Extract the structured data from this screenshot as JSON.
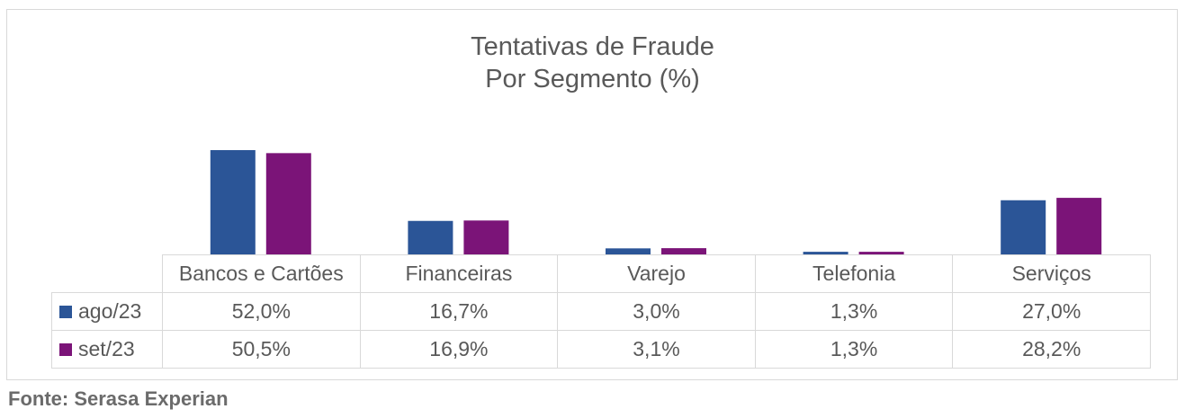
{
  "chart_data": {
    "type": "bar",
    "title_lines": [
      "Tentativas de Fraude",
      "Por Segmento (%)"
    ],
    "categories": [
      "Bancos e Cartões",
      "Financeiras",
      "Varejo",
      "Telefonia",
      "Serviços"
    ],
    "series": [
      {
        "name": "ago/23",
        "color": "#2b5597",
        "values": [
          52.0,
          16.7,
          3.0,
          1.3,
          27.0
        ],
        "labels": [
          "52,0%",
          "16,7%",
          "3,0%",
          "1,3%",
          "27,0%"
        ]
      },
      {
        "name": "set/23",
        "color": "#7b1478",
        "values": [
          50.5,
          16.9,
          3.1,
          1.3,
          28.2
        ],
        "labels": [
          "50,5%",
          "16,9%",
          "3,1%",
          "1,3%",
          "28,2%"
        ]
      }
    ],
    "ylim": [
      0,
      52.0
    ],
    "grid": false,
    "legend": "data-table"
  },
  "source": "Fonte: Serasa Experian"
}
